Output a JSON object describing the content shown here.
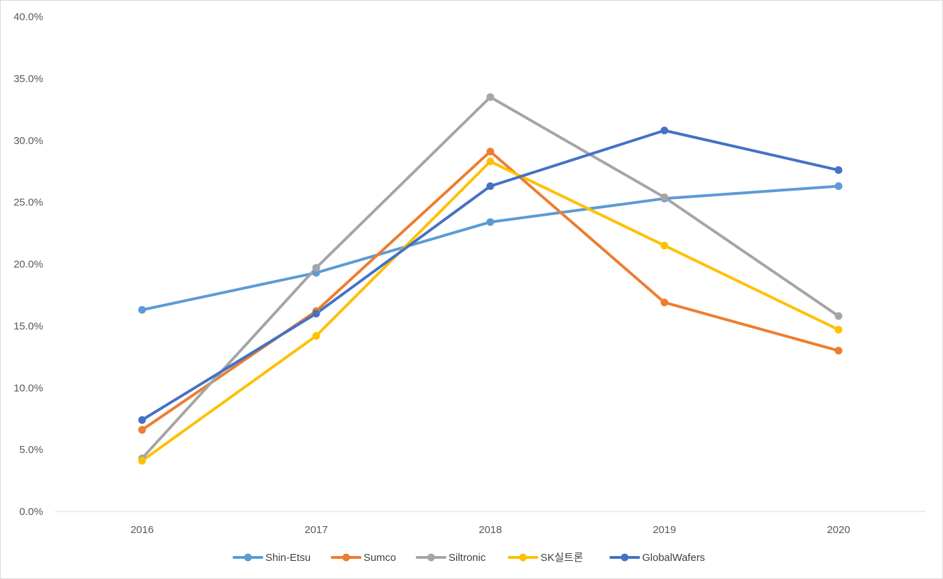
{
  "chart_data": {
    "type": "line",
    "title": "",
    "xlabel": "",
    "ylabel": "",
    "categories": [
      "2016",
      "2017",
      "2018",
      "2019",
      "2020"
    ],
    "ylim": [
      0,
      40
    ],
    "y_ticks": [
      0,
      5,
      10,
      15,
      20,
      25,
      30,
      35,
      40
    ],
    "y_tick_labels": [
      "0.0%",
      "5.0%",
      "10.0%",
      "15.0%",
      "20.0%",
      "25.0%",
      "30.0%",
      "35.0%",
      "40.0%"
    ],
    "value_format": "percent",
    "grid": false,
    "legend_position": "bottom",
    "series": [
      {
        "name": "Shin-Etsu",
        "color": "#5B9BD5",
        "values": [
          16.3,
          19.3,
          23.4,
          25.3,
          26.3
        ]
      },
      {
        "name": "Sumco",
        "color": "#ED7D31",
        "values": [
          6.6,
          16.2,
          29.1,
          16.9,
          13.0
        ]
      },
      {
        "name": "Siltronic",
        "color": "#A5A5A5",
        "values": [
          4.3,
          19.7,
          33.5,
          25.4,
          15.8
        ]
      },
      {
        "name": "SK실트론",
        "color": "#FFC000",
        "values": [
          4.1,
          14.2,
          28.3,
          21.5,
          14.7
        ]
      },
      {
        "name": "GlobalWafers",
        "color": "#4472C4",
        "values": [
          7.4,
          16.0,
          26.3,
          30.8,
          27.6
        ]
      }
    ]
  }
}
